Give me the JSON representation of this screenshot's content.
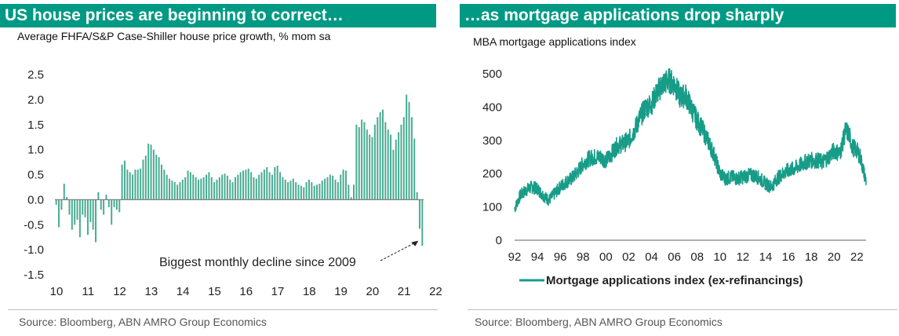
{
  "left": {
    "title": "US house prices are beginning to correct…",
    "subtitle": "Average FHFA/S&P Case-Shiller house price growth, % mom sa",
    "source": "Source: Bloomberg, ABN AMRO Group Economics",
    "annotation": "Biggest monthly decline since 2009"
  },
  "right": {
    "title": "…as mortgage applications drop sharply",
    "subtitle": "MBA mortgage applications index",
    "source": "Source:  Bloomberg, ABN AMRO Group Economics",
    "legend": "Mortgage applications index (ex-refinancings)"
  },
  "colors": {
    "accent": "#009a84",
    "bars": "#4aac93",
    "line": "#179c87"
  },
  "chart_data": [
    {
      "type": "bar",
      "title": "US house prices are beginning to correct…",
      "subtitle": "Average FHFA/S&P Case-Shiller house price growth, % mom sa",
      "xlabel": "",
      "ylabel": "",
      "ylim": [
        -1.5,
        2.5
      ],
      "yticks": [
        "2.5",
        "2.0",
        "1.5",
        "1.0",
        "0.5",
        "0.0",
        "-0.5",
        "-1.0",
        "-1.5"
      ],
      "xticks": [
        "10",
        "11",
        "12",
        "13",
        "14",
        "15",
        "16",
        "17",
        "18",
        "19",
        "20",
        "21",
        "22"
      ],
      "x_start": "2010-01",
      "frequency": "monthly",
      "grid": false,
      "values": [
        -0.1,
        -0.55,
        -0.2,
        0.32,
        0.05,
        -0.3,
        -0.6,
        -0.5,
        -0.4,
        -0.75,
        -0.3,
        -0.35,
        -0.7,
        -0.45,
        -0.6,
        -0.85,
        0.15,
        -0.2,
        -0.3,
        0.1,
        -0.15,
        -0.5,
        -0.15,
        -0.2,
        -0.25,
        0.7,
        0.78,
        0.6,
        0.55,
        0.5,
        0.6,
        0.6,
        0.62,
        0.8,
        0.88,
        1.12,
        1.1,
        1.0,
        0.9,
        0.85,
        0.7,
        0.6,
        0.5,
        0.42,
        0.38,
        0.35,
        0.3,
        0.35,
        0.4,
        0.45,
        0.58,
        0.55,
        0.5,
        0.45,
        0.4,
        0.42,
        0.45,
        0.5,
        0.55,
        0.45,
        0.35,
        0.4,
        0.45,
        0.5,
        0.52,
        0.48,
        0.4,
        0.35,
        0.45,
        0.5,
        0.55,
        0.58,
        0.6,
        0.62,
        0.55,
        0.45,
        0.42,
        0.5,
        0.55,
        0.6,
        0.65,
        0.55,
        0.5,
        0.65,
        0.68,
        0.55,
        0.45,
        0.4,
        0.35,
        0.38,
        0.42,
        0.35,
        0.3,
        0.28,
        0.25,
        0.35,
        0.4,
        0.35,
        0.28,
        0.3,
        0.32,
        0.38,
        0.42,
        0.45,
        0.5,
        0.48,
        0.4,
        0.35,
        0.5,
        0.6,
        0.58,
        0.3,
        0.05,
        0.3,
        1.5,
        1.45,
        1.6,
        1.55,
        1.4,
        1.3,
        1.25,
        1.5,
        1.65,
        1.75,
        1.8,
        1.55,
        1.4,
        1.3,
        1.0,
        1.2,
        1.35,
        1.5,
        1.65,
        2.1,
        1.95,
        1.65,
        1.22,
        0.15,
        -0.58,
        -0.92
      ]
    },
    {
      "type": "line",
      "title": "…as mortgage applications drop sharply",
      "subtitle": "MBA mortgage applications index",
      "series_name": "Mortgage applications index (ex-refinancings)",
      "ylim": [
        0,
        500
      ],
      "yticks": [
        "500",
        "400",
        "300",
        "200",
        "100",
        "0"
      ],
      "xticks": [
        "92",
        "94",
        "96",
        "98",
        "00",
        "02",
        "04",
        "06",
        "08",
        "10",
        "12",
        "14",
        "16",
        "18",
        "20",
        "22"
      ],
      "x_start": 1992.0,
      "x_end": 2022.8,
      "grid": false,
      "anchors": [
        [
          1992.0,
          95
        ],
        [
          1992.5,
          135
        ],
        [
          1993.0,
          150
        ],
        [
          1993.5,
          160
        ],
        [
          1994.0,
          155
        ],
        [
          1994.5,
          135
        ],
        [
          1995.0,
          120
        ],
        [
          1995.5,
          140
        ],
        [
          1996.0,
          160
        ],
        [
          1996.5,
          175
        ],
        [
          1997.0,
          185
        ],
        [
          1997.5,
          205
        ],
        [
          1998.0,
          230
        ],
        [
          1998.5,
          245
        ],
        [
          1999.0,
          250
        ],
        [
          1999.5,
          250
        ],
        [
          2000.0,
          240
        ],
        [
          2000.5,
          260
        ],
        [
          2001.0,
          285
        ],
        [
          2001.5,
          290
        ],
        [
          2002.0,
          300
        ],
        [
          2002.5,
          330
        ],
        [
          2003.0,
          370
        ],
        [
          2003.5,
          400
        ],
        [
          2004.0,
          410
        ],
        [
          2004.5,
          445
        ],
        [
          2005.0,
          470
        ],
        [
          2005.5,
          480
        ],
        [
          2006.0,
          470
        ],
        [
          2006.5,
          430
        ],
        [
          2007.0,
          435
        ],
        [
          2007.5,
          395
        ],
        [
          2008.0,
          360
        ],
        [
          2008.5,
          330
        ],
        [
          2009.0,
          295
        ],
        [
          2009.5,
          255
        ],
        [
          2010.0,
          200
        ],
        [
          2010.5,
          185
        ],
        [
          2011.0,
          190
        ],
        [
          2011.5,
          185
        ],
        [
          2012.0,
          190
        ],
        [
          2012.5,
          195
        ],
        [
          2013.0,
          195
        ],
        [
          2013.5,
          185
        ],
        [
          2014.0,
          170
        ],
        [
          2014.5,
          160
        ],
        [
          2015.0,
          185
        ],
        [
          2015.5,
          200
        ],
        [
          2016.0,
          210
        ],
        [
          2016.5,
          215
        ],
        [
          2017.0,
          225
        ],
        [
          2017.5,
          235
        ],
        [
          2018.0,
          240
        ],
        [
          2018.5,
          240
        ],
        [
          2019.0,
          235
        ],
        [
          2019.5,
          250
        ],
        [
          2020.0,
          270
        ],
        [
          2020.5,
          260
        ],
        [
          2020.8,
          300
        ],
        [
          2021.0,
          330
        ],
        [
          2021.3,
          320
        ],
        [
          2021.6,
          280
        ],
        [
          2022.0,
          270
        ],
        [
          2022.3,
          250
        ],
        [
          2022.6,
          205
        ],
        [
          2022.8,
          178
        ]
      ]
    }
  ]
}
